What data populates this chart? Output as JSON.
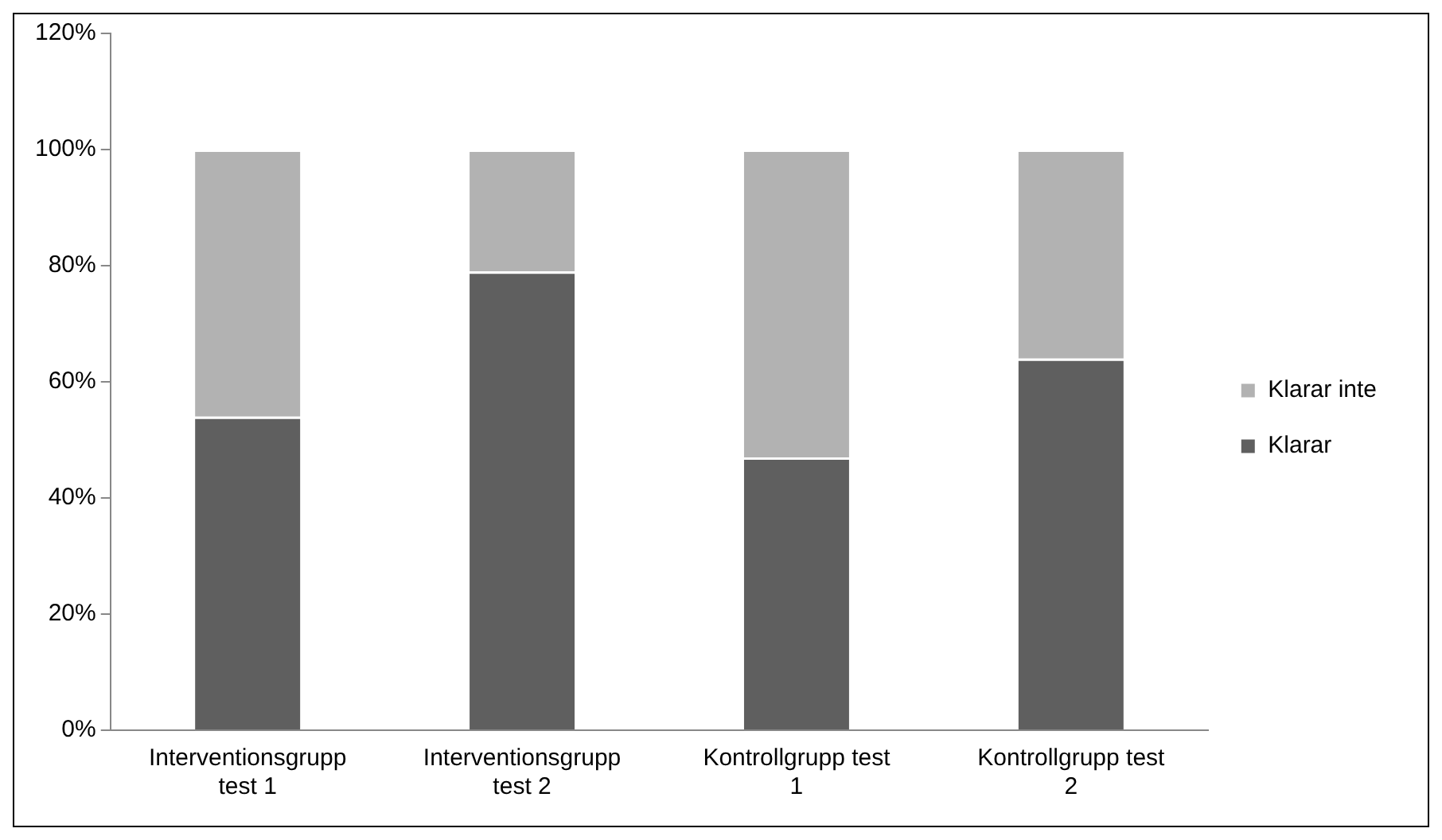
{
  "chart_data": {
    "type": "bar",
    "stacked": true,
    "categories": [
      "Interventionsgrupp test 1",
      "Interventionsgrupp test 2",
      "Kontrollgrupp test 1",
      "Kontrollgrupp test 2"
    ],
    "series": [
      {
        "name": "Klarar",
        "color": "#5f5f5f",
        "values": [
          54,
          79,
          47,
          64
        ]
      },
      {
        "name": "Klarar inte",
        "color": "#b2b2b2",
        "values": [
          46,
          21,
          53,
          36
        ]
      }
    ],
    "ylim": [
      0,
      120
    ],
    "yticks": [
      {
        "value": 0,
        "label": "0%"
      },
      {
        "value": 20,
        "label": "20%"
      },
      {
        "value": 40,
        "label": "40%"
      },
      {
        "value": 60,
        "label": "60%"
      },
      {
        "value": 80,
        "label": "80%"
      },
      {
        "value": 100,
        "label": "100%"
      },
      {
        "value": 120,
        "label": "120%"
      }
    ],
    "grid": false,
    "legend": "right"
  }
}
